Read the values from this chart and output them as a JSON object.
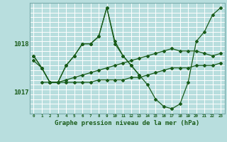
{
  "title": "Graphe pression niveau de la mer (hPa)",
  "bg_color": "#b8dede",
  "grid_color": "#ffffff",
  "line_color": "#1a5c1a",
  "x_min": -0.5,
  "x_max": 23.5,
  "y_min": 1016.55,
  "y_max": 1018.85,
  "yticks": [
    1017,
    1018
  ],
  "xticks": [
    0,
    1,
    2,
    3,
    4,
    5,
    6,
    7,
    8,
    9,
    10,
    11,
    12,
    13,
    14,
    15,
    16,
    17,
    18,
    19,
    20,
    21,
    22,
    23
  ],
  "series1_x": [
    0,
    1,
    2,
    3,
    4,
    5,
    6,
    7,
    8,
    9,
    10,
    11,
    12,
    13,
    14,
    15,
    16,
    17,
    18,
    19,
    20,
    21,
    22,
    23
  ],
  "series1_y": [
    1017.75,
    1017.5,
    1017.2,
    1017.2,
    1017.55,
    1017.75,
    1018.0,
    1018.0,
    1018.15,
    1018.75,
    1018.0,
    1017.75,
    1017.55,
    1017.35,
    1017.15,
    1016.85,
    1016.7,
    1016.65,
    1016.75,
    1017.2,
    1018.05,
    1018.25,
    1018.6,
    1018.75
  ],
  "series2_x": [
    0,
    1,
    2,
    3,
    4,
    5,
    6,
    7,
    8,
    9,
    10,
    11,
    12,
    13
  ],
  "series2_y": [
    1017.75,
    1017.5,
    1017.2,
    1017.2,
    1017.55,
    1017.75,
    1018.0,
    1018.0,
    1018.15,
    1018.75,
    1018.05,
    1017.75,
    1017.55,
    1017.35
  ],
  "series3_x": [
    0,
    1,
    2,
    3,
    4,
    5,
    6,
    7,
    8,
    9,
    10,
    11,
    12,
    13,
    14,
    15,
    16,
    17,
    18,
    19,
    20,
    21,
    22,
    23
  ],
  "series3_y": [
    1017.65,
    1017.5,
    1017.2,
    1017.2,
    1017.2,
    1017.2,
    1017.2,
    1017.2,
    1017.25,
    1017.25,
    1017.25,
    1017.25,
    1017.3,
    1017.3,
    1017.35,
    1017.4,
    1017.45,
    1017.5,
    1017.5,
    1017.5,
    1017.55,
    1017.55,
    1017.55,
    1017.6
  ],
  "series4_x": [
    1,
    2,
    3,
    4,
    5,
    6,
    7,
    8,
    9,
    10,
    11,
    12,
    13,
    14,
    15,
    16,
    17,
    18,
    19,
    20,
    21,
    22,
    23
  ],
  "series4_y": [
    1017.2,
    1017.2,
    1017.2,
    1017.25,
    1017.3,
    1017.35,
    1017.4,
    1017.45,
    1017.5,
    1017.55,
    1017.6,
    1017.65,
    1017.7,
    1017.75,
    1017.8,
    1017.85,
    1017.9,
    1017.85,
    1017.85,
    1017.85,
    1017.8,
    1017.75,
    1017.8
  ]
}
